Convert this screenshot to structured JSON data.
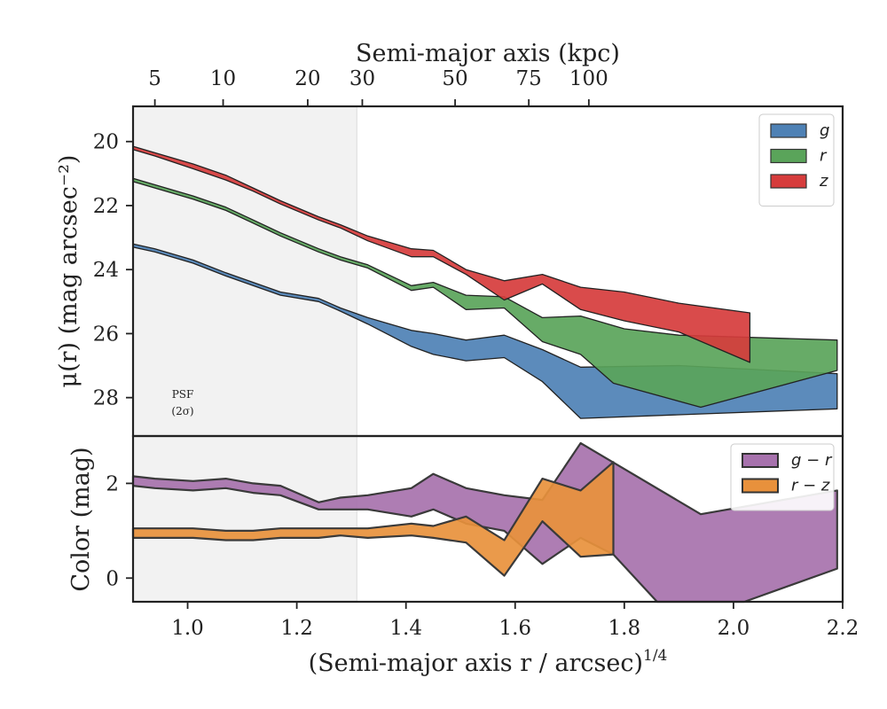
{
  "chart_data": {
    "type": "area",
    "top_axis": {
      "label": "Semi-major axis (kpc)",
      "ticks": [
        {
          "label": "5",
          "x": 0.94
        },
        {
          "label": "10",
          "x": 1.065
        },
        {
          "label": "20",
          "x": 1.22
        },
        {
          "label": "30",
          "x": 1.32
        },
        {
          "label": "50",
          "x": 1.49
        },
        {
          "label": "75",
          "x": 1.625
        },
        {
          "label": "100",
          "x": 1.735
        }
      ]
    },
    "xlabel": "(Semi-major axis r / arcsec)",
    "xlabel_exponent": "1/4",
    "xlim": [
      0.9,
      2.2
    ],
    "x_ticks": [
      "1.0",
      "1.2",
      "1.4",
      "1.6",
      "1.8",
      "2.0",
      "2.2"
    ],
    "x_tick_values": [
      1.0,
      1.2,
      1.4,
      1.6,
      1.8,
      2.0,
      2.2
    ],
    "psf_label_line1": "PSF",
    "psf_label_line2": "(2σ)",
    "psf_region": [
      0.9,
      1.31
    ],
    "panels": [
      {
        "ylabel": "μ(r) (mag arcsec⁻²)",
        "ylim": [
          29.2,
          18.9
        ],
        "y_ticks": [
          "20",
          "22",
          "24",
          "26",
          "28"
        ],
        "y_tick_values": [
          20,
          22,
          24,
          26,
          28
        ],
        "legend_position": "top-right",
        "series": [
          {
            "name": "g",
            "color": "#4e81b5",
            "upper": [
              [
                0.9,
                23.2
              ],
              [
                0.94,
                23.35
              ],
              [
                1.01,
                23.7
              ],
              [
                1.07,
                24.1
              ],
              [
                1.12,
                24.4
              ],
              [
                1.17,
                24.7
              ],
              [
                1.24,
                24.9
              ],
              [
                1.28,
                25.2
              ],
              [
                1.33,
                25.5
              ],
              [
                1.41,
                25.9
              ],
              [
                1.45,
                26.0
              ],
              [
                1.51,
                26.2
              ],
              [
                1.58,
                26.05
              ],
              [
                1.65,
                26.5
              ],
              [
                1.72,
                27.05
              ],
              [
                1.9,
                27.0
              ],
              [
                2.19,
                27.25
              ]
            ],
            "lower": [
              [
                0.9,
                23.3
              ],
              [
                0.94,
                23.45
              ],
              [
                1.01,
                23.8
              ],
              [
                1.07,
                24.2
              ],
              [
                1.12,
                24.5
              ],
              [
                1.17,
                24.8
              ],
              [
                1.24,
                25.0
              ],
              [
                1.28,
                25.3
              ],
              [
                1.33,
                25.7
              ],
              [
                1.41,
                26.4
              ],
              [
                1.45,
                26.65
              ],
              [
                1.51,
                26.85
              ],
              [
                1.58,
                26.75
              ],
              [
                1.65,
                27.5
              ],
              [
                1.72,
                28.65
              ],
              [
                2.19,
                28.35
              ]
            ]
          },
          {
            "name": "r",
            "color": "#5aa45a",
            "upper": [
              [
                0.9,
                21.15
              ],
              [
                0.94,
                21.35
              ],
              [
                1.01,
                21.7
              ],
              [
                1.07,
                22.05
              ],
              [
                1.12,
                22.45
              ],
              [
                1.17,
                22.85
              ],
              [
                1.24,
                23.35
              ],
              [
                1.28,
                23.6
              ],
              [
                1.33,
                23.85
              ],
              [
                1.41,
                24.5
              ],
              [
                1.45,
                24.4
              ],
              [
                1.51,
                24.8
              ],
              [
                1.58,
                24.85
              ],
              [
                1.65,
                25.5
              ],
              [
                1.72,
                25.45
              ],
              [
                1.8,
                25.85
              ],
              [
                1.9,
                26.05
              ],
              [
                2.19,
                26.2
              ]
            ],
            "lower": [
              [
                0.9,
                21.25
              ],
              [
                0.94,
                21.45
              ],
              [
                1.01,
                21.8
              ],
              [
                1.07,
                22.15
              ],
              [
                1.12,
                22.55
              ],
              [
                1.17,
                22.95
              ],
              [
                1.24,
                23.45
              ],
              [
                1.28,
                23.7
              ],
              [
                1.33,
                23.95
              ],
              [
                1.41,
                24.65
              ],
              [
                1.45,
                24.55
              ],
              [
                1.51,
                25.25
              ],
              [
                1.58,
                25.2
              ],
              [
                1.65,
                26.25
              ],
              [
                1.72,
                26.65
              ],
              [
                1.78,
                27.55
              ],
              [
                1.94,
                28.3
              ],
              [
                2.19,
                27.15
              ]
            ]
          },
          {
            "name": "z",
            "color": "#d63c3c",
            "upper": [
              [
                0.9,
                20.15
              ],
              [
                0.94,
                20.35
              ],
              [
                1.01,
                20.7
              ],
              [
                1.07,
                21.05
              ],
              [
                1.12,
                21.45
              ],
              [
                1.17,
                21.85
              ],
              [
                1.24,
                22.35
              ],
              [
                1.28,
                22.6
              ],
              [
                1.33,
                22.95
              ],
              [
                1.41,
                23.35
              ],
              [
                1.45,
                23.4
              ],
              [
                1.51,
                24.0
              ],
              [
                1.58,
                24.35
              ],
              [
                1.65,
                24.15
              ],
              [
                1.72,
                24.55
              ],
              [
                1.8,
                24.7
              ],
              [
                1.9,
                25.05
              ],
              [
                2.03,
                25.35
              ]
            ],
            "lower": [
              [
                0.9,
                20.25
              ],
              [
                0.94,
                20.45
              ],
              [
                1.01,
                20.85
              ],
              [
                1.07,
                21.2
              ],
              [
                1.12,
                21.55
              ],
              [
                1.17,
                21.95
              ],
              [
                1.24,
                22.45
              ],
              [
                1.28,
                22.7
              ],
              [
                1.33,
                23.1
              ],
              [
                1.41,
                23.6
              ],
              [
                1.45,
                23.6
              ],
              [
                1.51,
                24.15
              ],
              [
                1.58,
                24.95
              ],
              [
                1.65,
                24.45
              ],
              [
                1.72,
                25.25
              ],
              [
                1.8,
                25.6
              ],
              [
                1.9,
                25.95
              ],
              [
                2.03,
                26.9
              ]
            ]
          }
        ]
      },
      {
        "ylabel": "Color (mag)",
        "ylim": [
          -0.5,
          3.0
        ],
        "y_ticks": [
          "0",
          "2"
        ],
        "y_tick_values": [
          0,
          2
        ],
        "legend_position": "top-right",
        "series": [
          {
            "name": "g − r",
            "color": "#a772ad",
            "upper": [
              [
                0.9,
                2.15
              ],
              [
                0.94,
                2.1
              ],
              [
                1.01,
                2.05
              ],
              [
                1.07,
                2.1
              ],
              [
                1.12,
                2.0
              ],
              [
                1.17,
                1.95
              ],
              [
                1.24,
                1.6
              ],
              [
                1.28,
                1.7
              ],
              [
                1.33,
                1.75
              ],
              [
                1.41,
                1.9
              ],
              [
                1.45,
                2.2
              ],
              [
                1.51,
                1.9
              ],
              [
                1.58,
                1.75
              ],
              [
                1.65,
                1.65
              ],
              [
                1.72,
                2.85
              ],
              [
                1.94,
                1.35
              ],
              [
                2.19,
                1.85
              ]
            ],
            "lower": [
              [
                0.9,
                1.95
              ],
              [
                0.94,
                1.9
              ],
              [
                1.01,
                1.85
              ],
              [
                1.07,
                1.9
              ],
              [
                1.12,
                1.8
              ],
              [
                1.17,
                1.75
              ],
              [
                1.24,
                1.45
              ],
              [
                1.28,
                1.45
              ],
              [
                1.33,
                1.45
              ],
              [
                1.41,
                1.3
              ],
              [
                1.45,
                1.45
              ],
              [
                1.51,
                1.15
              ],
              [
                1.58,
                1.0
              ],
              [
                1.65,
                0.3
              ],
              [
                1.72,
                0.85
              ],
              [
                1.78,
                0.5
              ],
              [
                1.86,
                -0.5
              ],
              [
                2.02,
                -0.5
              ],
              [
                2.19,
                0.2
              ]
            ]
          },
          {
            "name": "r − z",
            "color": "#e8913c",
            "upper": [
              [
                0.9,
                1.05
              ],
              [
                0.94,
                1.05
              ],
              [
                1.01,
                1.05
              ],
              [
                1.07,
                1.0
              ],
              [
                1.12,
                1.0
              ],
              [
                1.17,
                1.05
              ],
              [
                1.24,
                1.05
              ],
              [
                1.28,
                1.05
              ],
              [
                1.33,
                1.05
              ],
              [
                1.41,
                1.15
              ],
              [
                1.45,
                1.1
              ],
              [
                1.51,
                1.3
              ],
              [
                1.58,
                0.8
              ],
              [
                1.65,
                2.1
              ],
              [
                1.72,
                1.85
              ],
              [
                1.78,
                2.45
              ]
            ],
            "lower": [
              [
                0.9,
                0.85
              ],
              [
                0.94,
                0.85
              ],
              [
                1.01,
                0.85
              ],
              [
                1.07,
                0.8
              ],
              [
                1.12,
                0.8
              ],
              [
                1.17,
                0.85
              ],
              [
                1.24,
                0.85
              ],
              [
                1.28,
                0.9
              ],
              [
                1.33,
                0.85
              ],
              [
                1.41,
                0.9
              ],
              [
                1.45,
                0.85
              ],
              [
                1.51,
                0.75
              ],
              [
                1.58,
                0.05
              ],
              [
                1.65,
                1.2
              ],
              [
                1.72,
                0.45
              ],
              [
                1.78,
                0.5
              ]
            ]
          }
        ]
      }
    ]
  }
}
